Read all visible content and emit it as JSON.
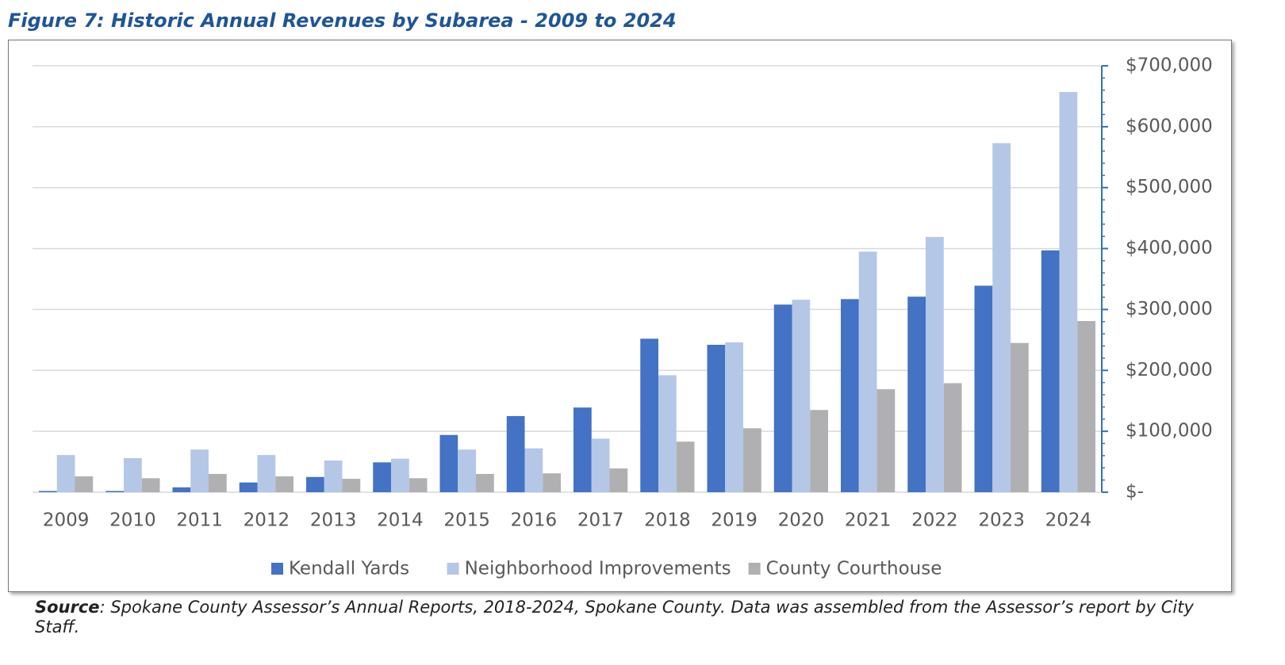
{
  "chart_data": {
    "type": "bar",
    "title": "Figure 7: Historic Annual Revenues by Subarea - 2009 to 2024",
    "categories": [
      "2009",
      "2010",
      "2011",
      "2012",
      "2013",
      "2014",
      "2015",
      "2016",
      "2017",
      "2018",
      "2019",
      "2020",
      "2021",
      "2022",
      "2023",
      "2024"
    ],
    "series": [
      {
        "name": "Kendall Yards",
        "color": "#4472c4",
        "values": [
          2000,
          2000,
          8000,
          16000,
          25000,
          49000,
          94000,
          125000,
          139000,
          252000,
          242000,
          308000,
          317000,
          321000,
          339000,
          397000
        ]
      },
      {
        "name": "Neighborhood Improvements",
        "color": "#b4c7e7",
        "values": [
          61000,
          56000,
          70000,
          61000,
          52000,
          55000,
          70000,
          72000,
          88000,
          192000,
          246000,
          316000,
          395000,
          419000,
          573000,
          657000
        ]
      },
      {
        "name": "County Courthouse",
        "color": "#b0b0b2",
        "values": [
          26000,
          23000,
          30000,
          26000,
          22000,
          23000,
          30000,
          31000,
          39000,
          83000,
          105000,
          135000,
          169000,
          179000,
          245000,
          281000
        ]
      }
    ],
    "ylim": [
      0,
      700000
    ],
    "yticks": [
      {
        "value": 0,
        "label": "$-"
      },
      {
        "value": 100000,
        "label": "$100,000"
      },
      {
        "value": 200000,
        "label": "$200,000"
      },
      {
        "value": 300000,
        "label": "$300,000"
      },
      {
        "value": 400000,
        "label": "$400,000"
      },
      {
        "value": 500000,
        "label": "$500,000"
      },
      {
        "value": 600000,
        "label": "$600,000"
      },
      {
        "value": 700000,
        "label": "$700,000"
      }
    ],
    "grid": true,
    "legend": "bottom",
    "source_label": "Source",
    "source_text": ": Spokane County Assessor’s Annual Reports, 2018-2024, Spokane County.  Data was assembled from the Assessor’s report by City Staff."
  }
}
